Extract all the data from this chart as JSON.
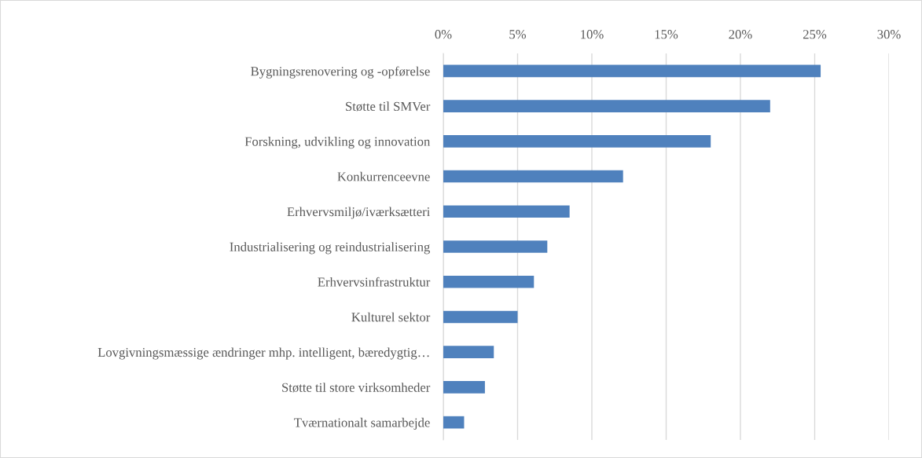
{
  "chart_data": {
    "type": "bar",
    "orientation": "horizontal",
    "categories": [
      "Bygningsrenovering og -opførelse",
      "Støtte til SMVer",
      "Forskning, udvikling og innovation",
      "Konkurrenceevne",
      "Erhvervsmiljø/iværksætteri",
      "Industrialisering og reindustrialisering",
      "Erhvervsinfrastruktur",
      "Kulturel sektor",
      "Lovgivningsmæssige ændringer mhp. intelligent, bæredygtig…",
      "Støtte til store virksomheder",
      "Tværnationalt samarbejde"
    ],
    "values": [
      25.4,
      22.0,
      18.0,
      12.1,
      8.5,
      7.0,
      6.1,
      5.0,
      3.4,
      2.8,
      1.4
    ],
    "color": "#4f81bd",
    "xlim": [
      0,
      30
    ],
    "xticks": [
      {
        "value": 0,
        "label": "0%"
      },
      {
        "value": 5,
        "label": "5%"
      },
      {
        "value": 10,
        "label": "10%"
      },
      {
        "value": 15,
        "label": "15%"
      },
      {
        "value": 20,
        "label": "20%"
      },
      {
        "value": 25,
        "label": "25%"
      },
      {
        "value": 30,
        "label": "30%"
      }
    ],
    "grid": "x"
  }
}
